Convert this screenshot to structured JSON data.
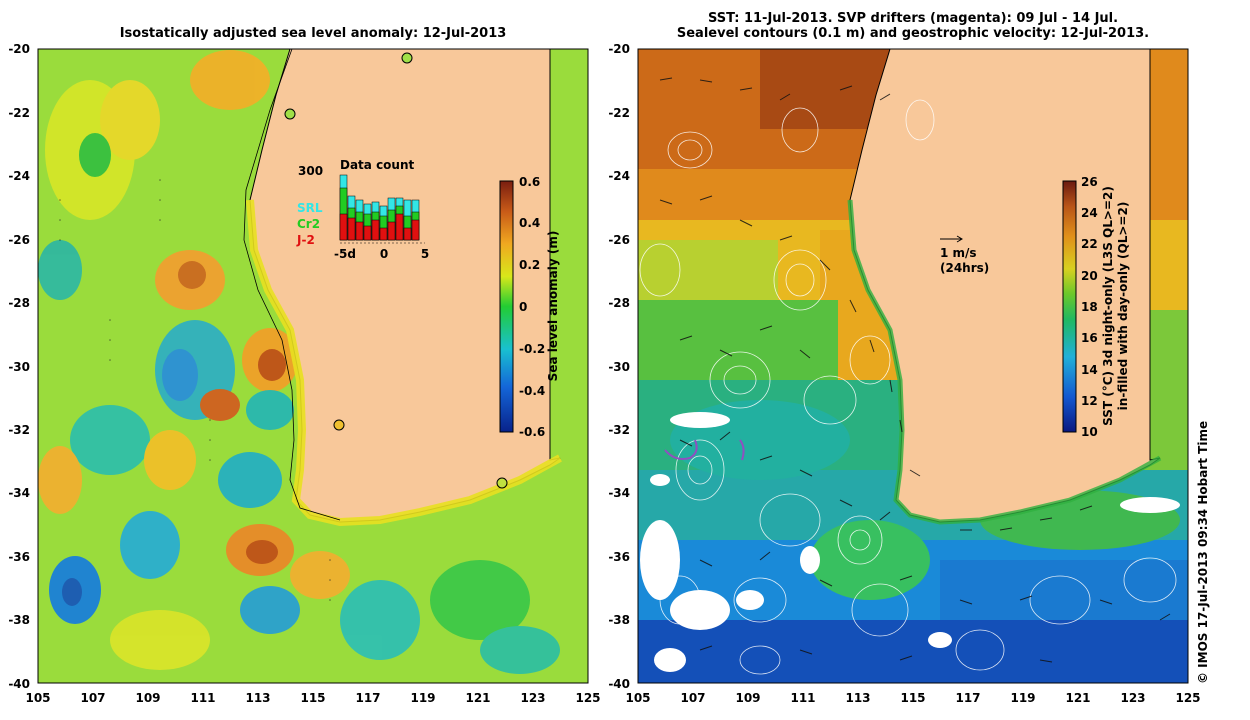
{
  "left_panel": {
    "title": "Isostatically adjusted sea level anomaly: 12-Jul-2013",
    "x_ticks": [
      "105",
      "107",
      "109",
      "111",
      "113",
      "115",
      "117",
      "119",
      "121",
      "123",
      "125"
    ],
    "y_ticks": [
      "-20",
      "-22",
      "-24",
      "-26",
      "-28",
      "-30",
      "-32",
      "-34",
      "-36",
      "-38",
      "-40"
    ],
    "colorbar": {
      "label": "Sea level anomaly (m)",
      "ticks": [
        "0.6",
        "0.4",
        "0.2",
        "0",
        "-0.2",
        "-0.4",
        "-0.6"
      ]
    },
    "inset": {
      "title": "Data count",
      "ymax_label": "300",
      "x_ticks": [
        "-5d",
        "0",
        "5"
      ],
      "legend": [
        {
          "name": "SRL",
          "color": "#33e6e6"
        },
        {
          "name": "Cr2",
          "color": "#22cc22"
        },
        {
          "name": "J-2",
          "color": "#e01010"
        }
      ]
    }
  },
  "right_panel": {
    "title_line1": "SST: 11-Jul-2013. SVP drifters (magenta): 09 Jul - 14 Jul.",
    "title_line2": "Sealevel contours (0.1 m) and geostrophic velocity: 12-Jul-2013.",
    "x_ticks": [
      "105",
      "107",
      "109",
      "111",
      "113",
      "115",
      "117",
      "119",
      "121",
      "123",
      "125"
    ],
    "y_ticks": [
      "-20",
      "-22",
      "-24",
      "-26",
      "-28",
      "-30",
      "-32",
      "-34",
      "-36",
      "-38",
      "-40"
    ],
    "scale_arrow_label1": "1 m/s",
    "scale_arrow_label2": "(24hrs)",
    "colorbar": {
      "label_line1": "SST (°C) 3d night-only (L3S QL>=2)",
      "label_line2": "in-filled with day-only (QL>=2)",
      "ticks": [
        "26",
        "24",
        "22",
        "20",
        "18",
        "16",
        "14",
        "12",
        "10"
      ]
    }
  },
  "credit": "© IMOS 17-Jul-2013 09:34 Hobart Time",
  "colors": {
    "land": "#f8c89a",
    "coast": "#000000"
  }
}
